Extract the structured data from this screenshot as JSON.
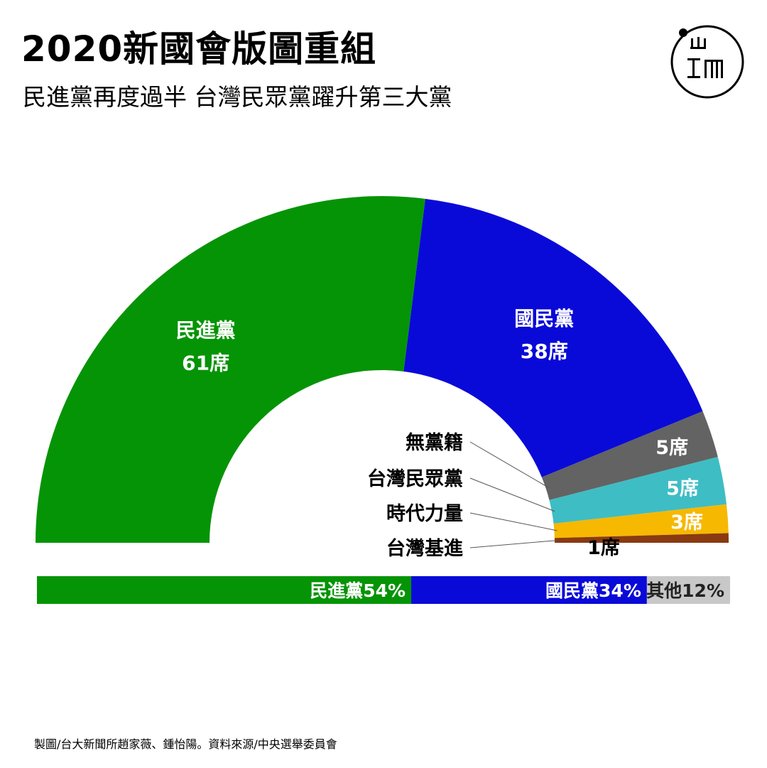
{
  "header": {
    "title": "2020新國會版圖重組",
    "subtitle": "民進黨再度過半 台灣民眾黨躍升第三大黨"
  },
  "logo": {
    "text": "端",
    "icon": "initium-logo-icon"
  },
  "chart_data": [
    {
      "type": "semicircle-donut",
      "total_seats": 113,
      "segments": [
        {
          "party": "民進黨",
          "seats": 61,
          "label": "61席",
          "color": "#059405"
        },
        {
          "party": "國民黨",
          "seats": 38,
          "label": "38席",
          "color": "#0a0ad8"
        },
        {
          "party": "無黨籍",
          "seats": 5,
          "label": "5席",
          "color": "#636363"
        },
        {
          "party": "台灣民眾黨",
          "seats": 5,
          "label": "5席",
          "color": "#3fbdc4"
        },
        {
          "party": "時代力量",
          "seats": 3,
          "label": "3席",
          "color": "#f6b800"
        },
        {
          "party": "台灣基進",
          "seats": 1,
          "label": "1席",
          "color": "#8a3a10"
        }
      ]
    },
    {
      "type": "stacked-bar",
      "segments": [
        {
          "label": "民進黨54%",
          "value": 54,
          "color": "#059405"
        },
        {
          "label": "國民黨34%",
          "value": 34,
          "color": "#0a0ad8"
        },
        {
          "label": "其他12%",
          "value": 12,
          "color": "#c8c8c8"
        }
      ]
    }
  ],
  "footer": {
    "credit": "製圖/台大新聞所趙家薇、鍾怡陽。資料來源/中央選舉委員會"
  }
}
